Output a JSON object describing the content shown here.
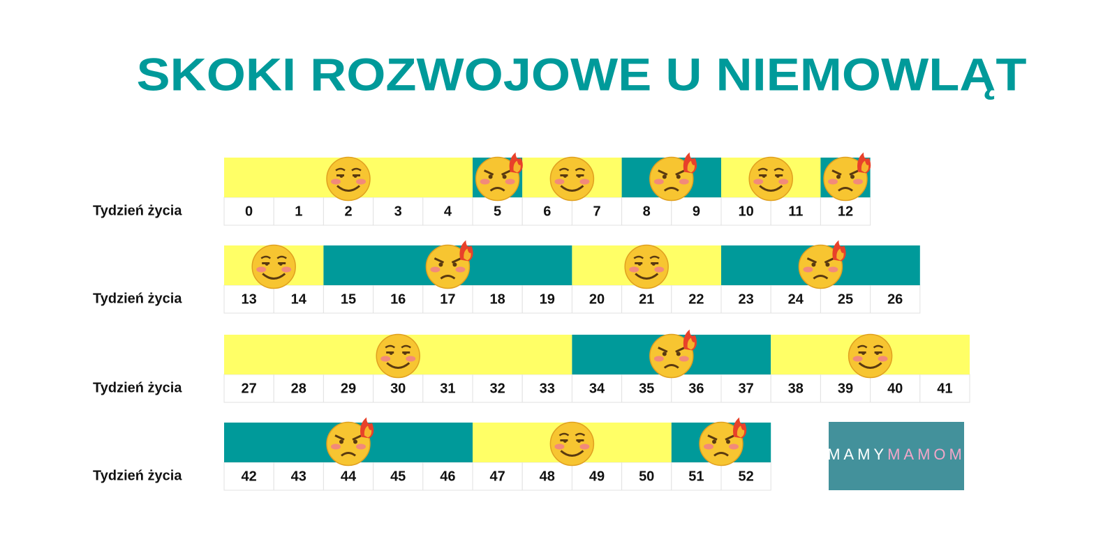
{
  "title": "SKOKI ROZWOJOWE U NIEMOWLĄT",
  "row_label": "Tydzień życia",
  "calm_color": "#ffff66",
  "leap_color": "#009a9a",
  "rows": [
    {
      "weeks": [
        "0",
        "1",
        "2",
        "3",
        "4",
        "5",
        "6",
        "7",
        "8",
        "9",
        "10",
        "11",
        "12"
      ],
      "phases": [
        {
          "from": 0,
          "to": 4,
          "color": "#ffff66"
        },
        {
          "from": 5,
          "to": 5,
          "color": "#009a9a"
        },
        {
          "from": 6,
          "to": 7,
          "color": "#ffff66"
        },
        {
          "from": 8,
          "to": 9,
          "color": "#009a9a"
        },
        {
          "from": 10,
          "to": 11,
          "color": "#ffff66"
        },
        {
          "from": 12,
          "to": 12,
          "color": "#009a9a"
        }
      ]
    },
    {
      "weeks": [
        "13",
        "14",
        "15",
        "16",
        "17",
        "18",
        "19",
        "20",
        "21",
        "22",
        "23",
        "24",
        "25",
        "26"
      ],
      "phases": [
        {
          "from": 13,
          "to": 14,
          "color": "#ffff66"
        },
        {
          "from": 15,
          "to": 19,
          "color": "#009a9a"
        },
        {
          "from": 20,
          "to": 22,
          "color": "#ffff66"
        },
        {
          "from": 23,
          "to": 26,
          "color": "#009a9a"
        }
      ]
    },
    {
      "weeks": [
        "27",
        "28",
        "29",
        "30",
        "31",
        "32",
        "33",
        "34",
        "35",
        "36",
        "37",
        "38",
        "39",
        "40",
        "41"
      ],
      "phases": [
        {
          "from": 27,
          "to": 33,
          "color": "#ffff66"
        },
        {
          "from": 34,
          "to": 37,
          "color": "#009a9a"
        },
        {
          "from": 38,
          "to": 41,
          "color": "#ffff66"
        }
      ]
    },
    {
      "weeks": [
        "42",
        "43",
        "44",
        "45",
        "46",
        "47",
        "48",
        "49",
        "50",
        "51",
        "52"
      ],
      "phases": [
        {
          "from": 42,
          "to": 46,
          "color": "#009a9a"
        },
        {
          "from": 47,
          "to": 50,
          "color": "#ffff66"
        },
        {
          "from": 51,
          "to": 52,
          "color": "#009a9a"
        }
      ]
    }
  ],
  "logo": {
    "part1": "MAMY",
    "part2": "MAMOM"
  }
}
